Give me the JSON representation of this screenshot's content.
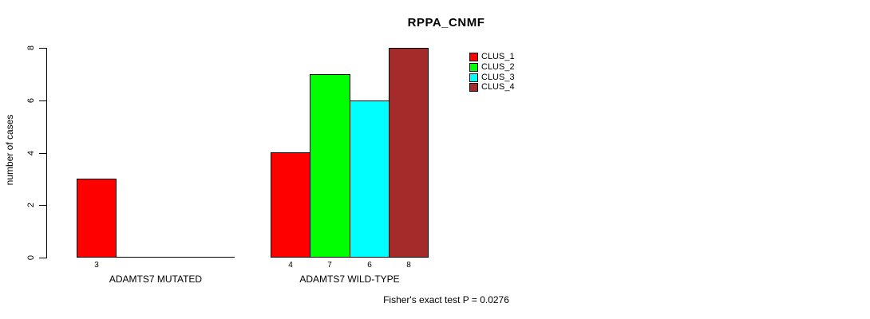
{
  "title": "RPPA_CNMF",
  "ylabel": "number of cases",
  "annotation": "Fisher's exact test P = 0.0276",
  "legend": [
    {
      "label": "CLUS_1",
      "color": "#FF0000"
    },
    {
      "label": "CLUS_2",
      "color": "#00FF00"
    },
    {
      "label": "CLUS_3",
      "color": "#00FFFF"
    },
    {
      "label": "CLUS_4",
      "color": "#A52A2A"
    }
  ],
  "chart_data": {
    "type": "bar",
    "title": "RPPA_CNMF",
    "xlabel": "",
    "ylabel": "number of cases",
    "ylim": [
      0,
      8
    ],
    "yticks": [
      0,
      2,
      4,
      6,
      8
    ],
    "grid": false,
    "legend_position": "top-right",
    "legend_entries": [
      "CLUS_1",
      "CLUS_2",
      "CLUS_3",
      "CLUS_4"
    ],
    "colors": {
      "CLUS_1": "#FF0000",
      "CLUS_2": "#00FF00",
      "CLUS_3": "#00FFFF",
      "CLUS_4": "#A52A2A"
    },
    "groups": [
      {
        "label": "ADAMTS7 MUTATED",
        "series": [
          {
            "name": "CLUS_1",
            "value": 3
          },
          {
            "name": "CLUS_2",
            "value": 0
          },
          {
            "name": "CLUS_3",
            "value": 0
          },
          {
            "name": "CLUS_4",
            "value": 0
          }
        ]
      },
      {
        "label": "ADAMTS7 WILD-TYPE",
        "series": [
          {
            "name": "CLUS_1",
            "value": 4
          },
          {
            "name": "CLUS_2",
            "value": 7
          },
          {
            "name": "CLUS_3",
            "value": 6
          },
          {
            "name": "CLUS_4",
            "value": 8
          }
        ]
      }
    ],
    "bar_value_labels": "shown under each non-zero bar",
    "annotation": "Fisher's exact test P = 0.0276"
  }
}
